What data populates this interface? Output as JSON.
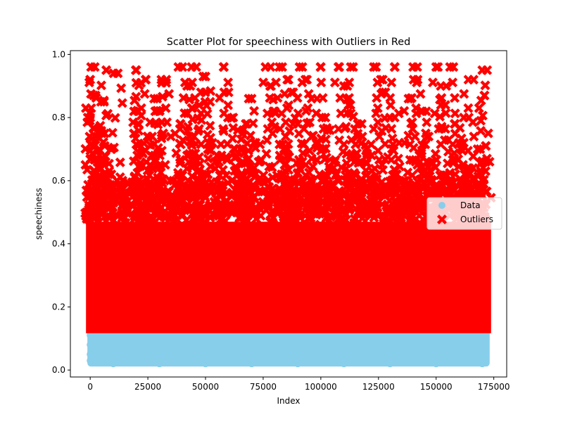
{
  "chart_data": {
    "type": "scatter",
    "title": "Scatter Plot for speechiness with Outliers in Red",
    "xlabel": "Index",
    "ylabel": "speechiness",
    "xlim": [
      -8600,
      180600
    ],
    "ylim": [
      -0.022,
      1.012
    ],
    "x_ticks": [
      0,
      25000,
      50000,
      75000,
      100000,
      125000,
      150000,
      175000
    ],
    "x_tick_labels": [
      "0",
      "25000",
      "50000",
      "75000",
      "100000",
      "125000",
      "150000",
      "175000"
    ],
    "y_ticks": [
      0.0,
      0.2,
      0.4,
      0.6,
      0.8,
      1.0
    ],
    "y_tick_labels": [
      "0.0",
      "0.2",
      "0.4",
      "0.6",
      "0.8",
      "1.0"
    ],
    "grid": false,
    "legend_position": "center-right",
    "series": [
      {
        "name": "Data",
        "marker": "circle",
        "color": "#87CEEB",
        "x_range": [
          0,
          172000
        ],
        "value_range": [
          0.02,
          0.12
        ],
        "points": [
          [
            0,
            0.03
          ],
          [
            0,
            0.05
          ],
          [
            0,
            0.08
          ],
          [
            0,
            0.11
          ],
          [
            10000,
            0.02
          ],
          [
            10000,
            0.06
          ],
          [
            10000,
            0.1
          ],
          [
            20000,
            0.03
          ],
          [
            20000,
            0.07
          ],
          [
            20000,
            0.11
          ],
          [
            30000,
            0.02
          ],
          [
            30000,
            0.05
          ],
          [
            30000,
            0.09
          ],
          [
            40000,
            0.03
          ],
          [
            40000,
            0.06
          ],
          [
            40000,
            0.11
          ],
          [
            50000,
            0.02
          ],
          [
            50000,
            0.08
          ],
          [
            50000,
            0.1
          ],
          [
            60000,
            0.03
          ],
          [
            60000,
            0.05
          ],
          [
            60000,
            0.11
          ],
          [
            70000,
            0.02
          ],
          [
            70000,
            0.07
          ],
          [
            70000,
            0.09
          ],
          [
            80000,
            0.03
          ],
          [
            80000,
            0.06
          ],
          [
            80000,
            0.11
          ],
          [
            90000,
            0.02
          ],
          [
            90000,
            0.05
          ],
          [
            90000,
            0.1
          ],
          [
            100000,
            0.03
          ],
          [
            100000,
            0.08
          ],
          [
            100000,
            0.11
          ],
          [
            110000,
            0.02
          ],
          [
            110000,
            0.06
          ],
          [
            110000,
            0.09
          ],
          [
            120000,
            0.03
          ],
          [
            120000,
            0.05
          ],
          [
            120000,
            0.11
          ],
          [
            130000,
            0.02
          ],
          [
            130000,
            0.07
          ],
          [
            130000,
            0.1
          ],
          [
            140000,
            0.03
          ],
          [
            140000,
            0.06
          ],
          [
            140000,
            0.11
          ],
          [
            150000,
            0.02
          ],
          [
            150000,
            0.05
          ],
          [
            150000,
            0.09
          ],
          [
            160000,
            0.03
          ],
          [
            160000,
            0.08
          ],
          [
            160000,
            0.11
          ],
          [
            170000,
            0.02
          ],
          [
            170000,
            0.05
          ],
          [
            170000,
            0.1
          ]
        ]
      },
      {
        "name": "Outliers",
        "marker": "X",
        "color": "#FF0000",
        "x_range": [
          0,
          172000
        ],
        "value_range": [
          0.13,
          0.97
        ],
        "points": [
          [
            0,
            0.92
          ],
          [
            0,
            0.8
          ],
          [
            0,
            0.5
          ],
          [
            1500,
            0.87
          ],
          [
            3000,
            0.74
          ],
          [
            5000,
            0.75
          ],
          [
            4000,
            0.68
          ],
          [
            8000,
            0.62
          ],
          [
            9000,
            0.7
          ],
          [
            14000,
            0.6
          ],
          [
            12000,
            0.94
          ],
          [
            6000,
            0.85
          ],
          [
            7000,
            0.95
          ],
          [
            2000,
            0.96
          ],
          [
            20000,
            0.95
          ],
          [
            22000,
            0.91
          ],
          [
            24000,
            0.92
          ],
          [
            19000,
            0.82
          ],
          [
            21000,
            0.78
          ],
          [
            25000,
            0.74
          ],
          [
            28000,
            0.68
          ],
          [
            29000,
            0.86
          ],
          [
            31000,
            0.91
          ],
          [
            33000,
            0.92
          ],
          [
            30000,
            0.82
          ],
          [
            36000,
            0.6
          ],
          [
            40000,
            0.96
          ],
          [
            42000,
            0.9
          ],
          [
            44000,
            0.83
          ],
          [
            46000,
            0.96
          ],
          [
            48000,
            0.88
          ],
          [
            39000,
            0.78
          ],
          [
            42000,
            0.68
          ],
          [
            45000,
            0.74
          ],
          [
            47000,
            0.6
          ],
          [
            50000,
            0.93
          ],
          [
            52000,
            0.85
          ],
          [
            53000,
            0.72
          ],
          [
            55000,
            0.68
          ],
          [
            58000,
            0.96
          ],
          [
            60000,
            0.88
          ],
          [
            62000,
            0.8
          ],
          [
            64000,
            0.76
          ],
          [
            66000,
            0.62
          ],
          [
            68000,
            0.78
          ],
          [
            70000,
            0.86
          ],
          [
            71000,
            0.72
          ],
          [
            73000,
            0.66
          ],
          [
            76000,
            0.96
          ],
          [
            78000,
            0.9
          ],
          [
            80000,
            0.82
          ],
          [
            82000,
            0.96
          ],
          [
            84000,
            0.7
          ],
          [
            86000,
            0.92
          ],
          [
            88000,
            0.88
          ],
          [
            90000,
            0.78
          ],
          [
            92000,
            0.96
          ],
          [
            94000,
            0.92
          ],
          [
            96000,
            0.86
          ],
          [
            98000,
            0.72
          ],
          [
            100000,
            0.96
          ],
          [
            102000,
            0.8
          ],
          [
            104000,
            0.76
          ],
          [
            106000,
            0.66
          ],
          [
            108000,
            0.96
          ],
          [
            110000,
            0.9
          ],
          [
            112000,
            0.84
          ],
          [
            114000,
            0.96
          ],
          [
            116000,
            0.78
          ],
          [
            118000,
            0.74
          ],
          [
            120000,
            0.7
          ],
          [
            122000,
            0.68
          ],
          [
            124000,
            0.96
          ],
          [
            126000,
            0.92
          ],
          [
            128000,
            0.88
          ],
          [
            130000,
            0.8
          ],
          [
            132000,
            0.96
          ],
          [
            134000,
            0.72
          ],
          [
            136000,
            0.6
          ],
          [
            138000,
            0.86
          ],
          [
            140000,
            0.96
          ],
          [
            142000,
            0.92
          ],
          [
            144000,
            0.82
          ],
          [
            146000,
            0.74
          ],
          [
            148000,
            0.66
          ],
          [
            150000,
            0.96
          ],
          [
            152000,
            0.9
          ],
          [
            154000,
            0.84
          ],
          [
            156000,
            0.96
          ],
          [
            158000,
            0.78
          ],
          [
            160000,
            0.72
          ],
          [
            162000,
            0.8
          ],
          [
            164000,
            0.92
          ],
          [
            166000,
            0.64
          ],
          [
            168000,
            0.7
          ],
          [
            170000,
            0.95
          ],
          [
            171000,
            0.87
          ],
          [
            171500,
            0.66
          ],
          [
            169000,
            0.56
          ],
          [
            159000,
            0.56
          ],
          [
            149000,
            0.58
          ],
          [
            139000,
            0.58
          ],
          [
            129000,
            0.58
          ],
          [
            117000,
            0.58
          ],
          [
            107000,
            0.56
          ],
          [
            97000,
            0.58
          ],
          [
            87000,
            0.56
          ],
          [
            77000,
            0.58
          ],
          [
            67000,
            0.54
          ],
          [
            57000,
            0.56
          ],
          [
            47000,
            0.52
          ],
          [
            37000,
            0.54
          ],
          [
            27000,
            0.58
          ],
          [
            17000,
            0.56
          ],
          [
            7000,
            0.58
          ],
          [
            1000,
            0.6
          ],
          [
            65000,
            0.7
          ],
          [
            83000,
            0.62
          ],
          [
            91000,
            0.66
          ],
          [
            101000,
            0.6
          ],
          [
            113000,
            0.68
          ],
          [
            123000,
            0.6
          ],
          [
            133000,
            0.62
          ],
          [
            143000,
            0.66
          ],
          [
            153000,
            0.6
          ],
          [
            163000,
            0.62
          ]
        ]
      }
    ]
  }
}
